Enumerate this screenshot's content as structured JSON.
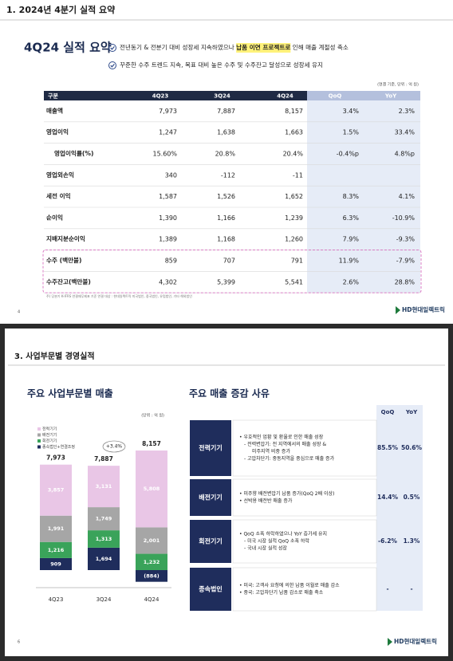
{
  "slide1": {
    "header": "1. 2024년 4분기 실적 요약",
    "title": "4Q24 실적 요약",
    "bullet1_parts": [
      "전년동기 & 전분기 대비 성장세 지속하였으나 ",
      "납품 이연 프로젝트로",
      " 인해 매출 계절성 축소"
    ],
    "bullet2": "꾸준한 수주 트렌드 지속, 목표 대비 높은 수주 및 수주잔고 달성으로 성장세 유지",
    "unit_note": "(연결 기준, 단위 : 억 원)",
    "table": {
      "header": [
        "구분",
        "4Q23",
        "3Q24",
        "4Q24",
        "QoQ",
        "YoY"
      ],
      "rows": [
        [
          "매출액",
          "7,973",
          "7,887",
          "8,157",
          "3.4%",
          "2.3%"
        ],
        [
          "영업이익",
          "1,247",
          "1,638",
          "1,663",
          "1.5%",
          "33.4%"
        ],
        [
          "영업이익률(%)",
          "15.60%",
          "20.8%",
          "20.4%",
          "-0.4%p",
          "4.8%p"
        ],
        [
          "영업외손익",
          "340",
          "-112",
          "-11",
          null,
          null
        ],
        [
          "세전 이익",
          "1,587",
          "1,526",
          "1,652",
          "8.3%",
          "4.1%"
        ],
        [
          "순이익",
          "1,390",
          "1,166",
          "1,239",
          "6.3%",
          "-10.9%"
        ],
        [
          "지배지분순이익",
          "1,389",
          "1,168",
          "1,260",
          "7.9%",
          "-9.3%"
        ],
        [
          "수주 (백만불)",
          "859",
          "707",
          "791",
          "11.9%",
          "-7.9%"
        ],
        [
          "수주잔고(백만불)",
          "4,302",
          "5,399",
          "5,541",
          "2.6%",
          "28.8%"
        ]
      ]
    },
    "footnote": "주) 당분기 K-IFRS 연결재무제표 기준 연결 대상 : 현대일렉트릭 미국법인, 중국법인, 유럽법인, 기타 해외법인",
    "page_number": "4",
    "logo": "HD현대일렉트릭"
  },
  "slide2": {
    "header": "3. 사업부문별 경영실적",
    "left_title": "주요 사업부문별 매출",
    "right_title": "주요 매출 증감 사유",
    "chart": {
      "type": "bar",
      "stacked": true,
      "unit": "(단위 : 억 원)",
      "categories": [
        "4Q23",
        "3Q24",
        "4Q24"
      ],
      "total_labels": [
        "7,973",
        "7,887",
        "8,157"
      ],
      "annotation": "+3.4%",
      "series": [
        {
          "name": "종속법인+연결조정",
          "color": "#1f2d5c",
          "values": [
            909,
            1694,
            -884
          ],
          "value_labels": [
            "909",
            "1,694",
            "(884)"
          ]
        },
        {
          "name": "회전기기",
          "color": "#3aa35a",
          "values": [
            1216,
            1313,
            1232
          ],
          "value_labels": [
            "1,216",
            "1,313",
            "1,232"
          ]
        },
        {
          "name": "배전기기",
          "color": "#a6a6a6",
          "values": [
            1991,
            1749,
            2001
          ],
          "value_labels": [
            "1,991",
            "1,749",
            "2,001"
          ]
        },
        {
          "name": "전력기기",
          "color": "#e9c6e6",
          "values": [
            3857,
            3131,
            5808
          ],
          "value_labels": [
            "3,857",
            "3,131",
            "5,808"
          ]
        }
      ]
    },
    "table": {
      "header": [
        "QoQ",
        "YoY"
      ],
      "rows": [
        {
          "segment": "전력기기",
          "lines": [
            "• 우호적인 업황 및 환율로 인한 매출 성장",
            "- 전력변압기: 전 지역에서의 매출 성장 &",
            "미주지역 비중 증가",
            "- 고압차단기: 중동지역을 중심으로 매출 증가"
          ],
          "qoq": "85.5%",
          "yoy": "50.6%"
        },
        {
          "segment": "배전기기",
          "lines": [
            "• 미주향 배전변압기 납품 증가(QoQ 2배 이상)",
            "• 선박용 배전반 매출 증가"
          ],
          "qoq": "14.4%",
          "yoy": "0.5%"
        },
        {
          "segment": "회전기기",
          "lines": [
            "• QoQ 소폭 하락하였으나 YoY 증가세 유지",
            "- 미국 시장 실적 QoQ 소폭 하락",
            "- 국내 시장 실적 성장"
          ],
          "qoq": "-6.2%",
          "yoy": "1.3%"
        },
        {
          "segment": "종속법인",
          "lines": [
            "• 미국: 고객사 요청에 의한 납품 이월로 매출 감소",
            "• 중국: 고압차단기 납품 감소로 매출 축소"
          ],
          "qoq": "-",
          "yoy": "-"
        }
      ]
    },
    "page_number": "6",
    "logo": "HD현대일렉트릭"
  }
}
